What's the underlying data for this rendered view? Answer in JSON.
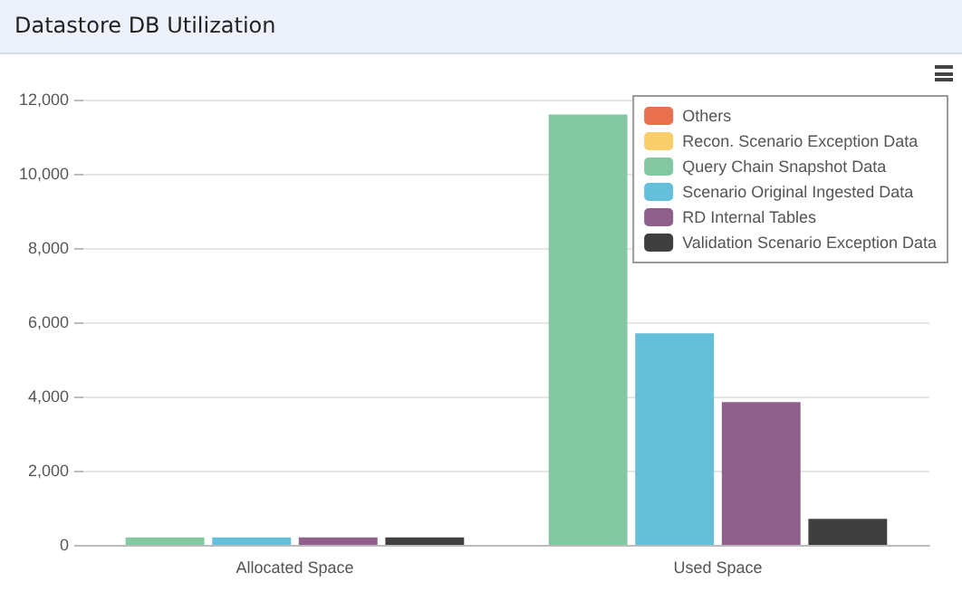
{
  "chart_data": {
    "type": "bar",
    "title": "Datastore DB Utilization",
    "categories": [
      "Allocated Space",
      "Used Space"
    ],
    "series": [
      {
        "name": "Others",
        "color": "#e8704f",
        "values": [
          null,
          null
        ]
      },
      {
        "name": "Recon. Scenario Exception Data",
        "color": "#f9cd6a",
        "values": [
          null,
          null
        ]
      },
      {
        "name": "Query Chain Snapshot Data",
        "color": "#84c7a3",
        "values": [
          200,
          11600
        ]
      },
      {
        "name": "Scenario Original Ingested Data",
        "color": "#65bfd8",
        "values": [
          200,
          5700
        ]
      },
      {
        "name": "RD Internal Tables",
        "color": "#8e608b",
        "values": [
          200,
          3850
        ]
      },
      {
        "name": "Validation Scenario Exception Data",
        "color": "#3f3f3f",
        "values": [
          200,
          700
        ]
      }
    ],
    "ylim": [
      0,
      12000
    ],
    "yticks": [
      0,
      {
        "value": 2000,
        "label": "2,000"
      },
      {
        "value": 4000,
        "label": "4,000"
      },
      {
        "value": 6000,
        "label": "6,000"
      },
      {
        "value": 8000,
        "label": "8,000"
      },
      {
        "value": 10000,
        "label": "10,000"
      },
      {
        "value": 12000,
        "label": "12,000"
      }
    ],
    "grid": "y",
    "legend": "top right"
  }
}
